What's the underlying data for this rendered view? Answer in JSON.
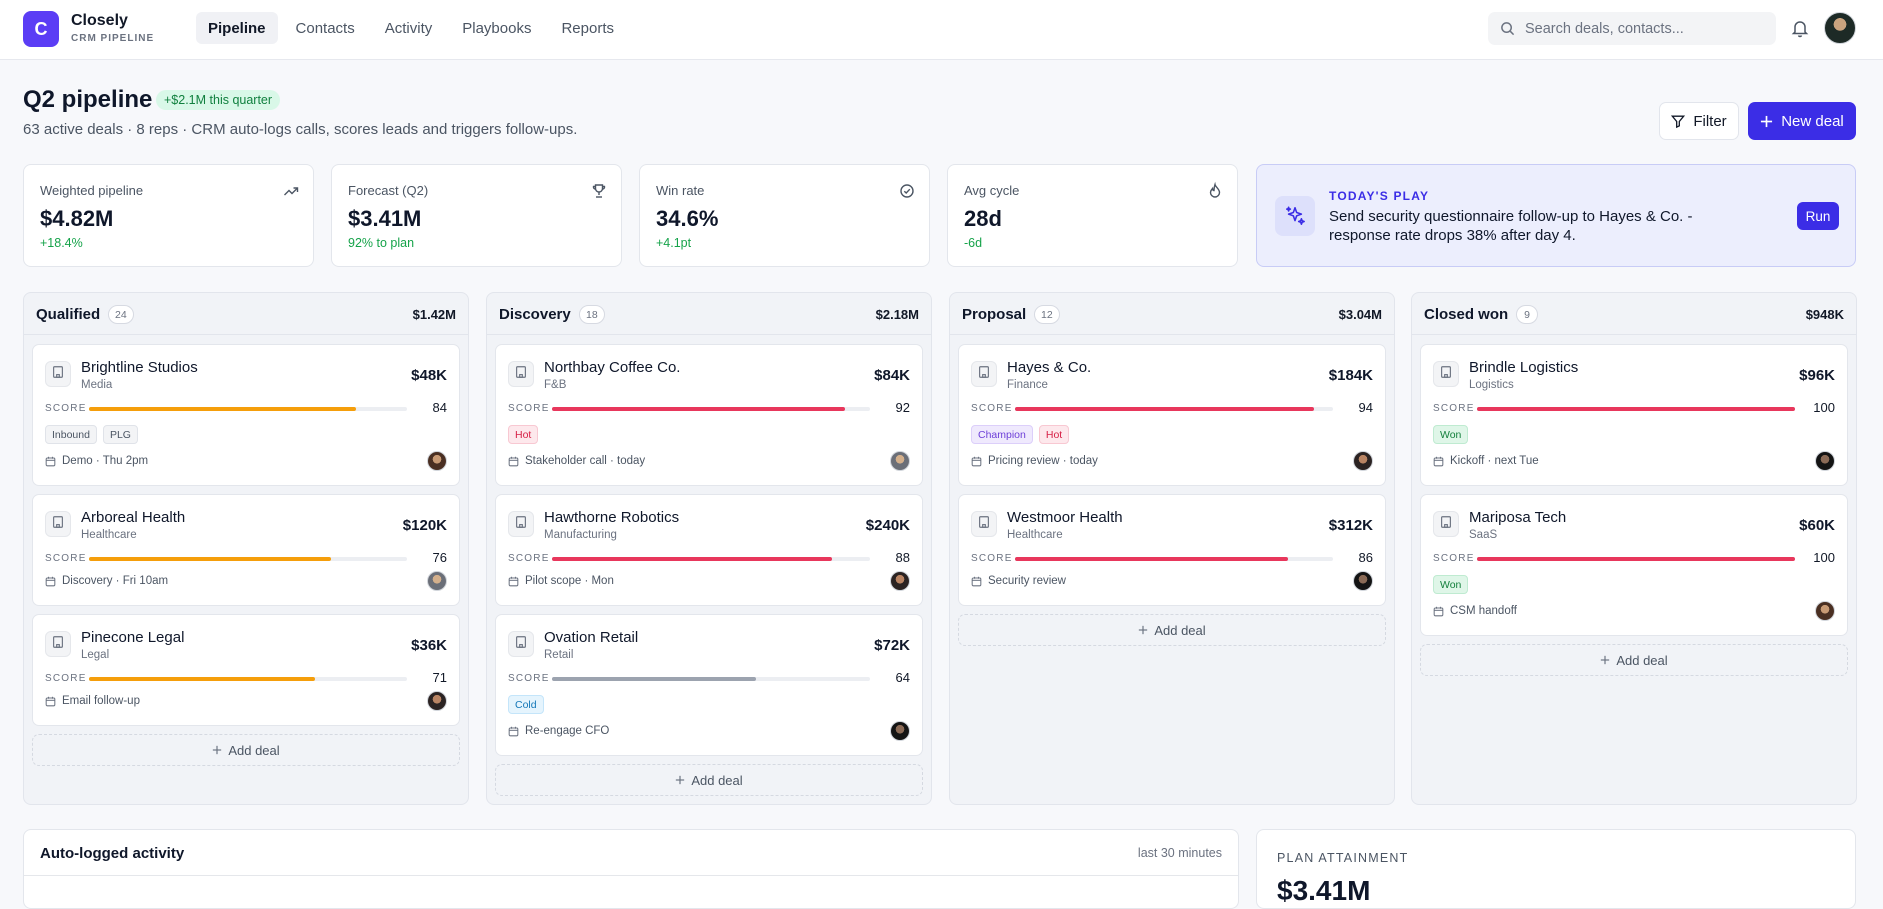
{
  "brand": {
    "logo_letter": "C",
    "name": "Closely",
    "subtitle": "CRM PIPELINE"
  },
  "nav": [
    {
      "label": "Pipeline",
      "active": true
    },
    {
      "label": "Contacts",
      "active": false
    },
    {
      "label": "Activity",
      "active": false
    },
    {
      "label": "Playbooks",
      "active": false
    },
    {
      "label": "Reports",
      "active": false
    }
  ],
  "search": {
    "placeholder": "Search deals, contacts..."
  },
  "header": {
    "title": "Q2 pipeline",
    "badge": "+$2.1M this quarter",
    "subtitle": "63 active deals · 8 reps · CRM auto-logs calls, scores leads and triggers follow-ups.",
    "filter_label": "Filter",
    "new_deal_label": "New deal"
  },
  "stats": [
    {
      "label": "Weighted pipeline",
      "value": "$4.82M",
      "delta": "+18.4%",
      "icon": "trending-up-icon",
      "delta_color": "#16a34a"
    },
    {
      "label": "Forecast (Q2)",
      "value": "$3.41M",
      "delta": "92% to plan",
      "icon": "trophy-icon",
      "delta_color": "#16a34a"
    },
    {
      "label": "Win rate",
      "value": "34.6%",
      "delta": "+4.1pt",
      "icon": "check-circle-icon",
      "delta_color": "#16a34a"
    },
    {
      "label": "Avg cycle",
      "value": "28d",
      "delta": "-6d",
      "icon": "flame-icon",
      "delta_color": "#16a34a"
    }
  ],
  "todays_play": {
    "kicker": "TODAY'S PLAY",
    "text": "Send security questionnaire follow-up to Hayes & Co. - response rate drops 38% after day 4.",
    "run_label": "Run"
  },
  "columns": [
    {
      "name": "Qualified",
      "count": "24",
      "total": "$1.42M",
      "add_label": "Add deal",
      "deals": [
        {
          "name": "Brightline Studios",
          "industry": "Media",
          "amount": "$48K",
          "score": 84,
          "score_color": "#f59e0b",
          "tags": [
            {
              "label": "Inbound",
              "kind": "gray"
            },
            {
              "label": "PLG",
              "kind": "gray"
            }
          ],
          "meta": "Demo · Thu 2pm"
        },
        {
          "name": "Arboreal Health",
          "industry": "Healthcare",
          "amount": "$120K",
          "score": 76,
          "score_color": "#f59e0b",
          "tags": [],
          "meta": "Discovery · Fri 10am"
        },
        {
          "name": "Pinecone Legal",
          "industry": "Legal",
          "amount": "$36K",
          "score": 71,
          "score_color": "#f59e0b",
          "tags": [],
          "meta": "Email follow-up"
        }
      ]
    },
    {
      "name": "Discovery",
      "count": "18",
      "total": "$2.18M",
      "add_label": "Add deal",
      "deals": [
        {
          "name": "Northbay Coffee Co.",
          "industry": "F&B",
          "amount": "$84K",
          "score": 92,
          "score_color": "#e8375c",
          "tags": [
            {
              "label": "Hot",
              "kind": "hot"
            }
          ],
          "meta": "Stakeholder call · today"
        },
        {
          "name": "Hawthorne Robotics",
          "industry": "Manufacturing",
          "amount": "$240K",
          "score": 88,
          "score_color": "#e8375c",
          "tags": [],
          "meta": "Pilot scope · Mon"
        },
        {
          "name": "Ovation Retail",
          "industry": "Retail",
          "amount": "$72K",
          "score": 64,
          "score_color": "#9ca3af",
          "tags": [
            {
              "label": "Cold",
              "kind": "cold"
            }
          ],
          "meta": "Re-engage CFO"
        }
      ]
    },
    {
      "name": "Proposal",
      "count": "12",
      "total": "$3.04M",
      "add_label": "Add deal",
      "deals": [
        {
          "name": "Hayes & Co.",
          "industry": "Finance",
          "amount": "$184K",
          "score": 94,
          "score_color": "#e8375c",
          "tags": [
            {
              "label": "Champion",
              "kind": "champion"
            },
            {
              "label": "Hot",
              "kind": "hot"
            }
          ],
          "meta": "Pricing review · today"
        },
        {
          "name": "Westmoor Health",
          "industry": "Healthcare",
          "amount": "$312K",
          "score": 86,
          "score_color": "#e8375c",
          "tags": [],
          "meta": "Security review"
        }
      ]
    },
    {
      "name": "Closed won",
      "count": "9",
      "total": "$948K",
      "add_label": "Add deal",
      "deals": [
        {
          "name": "Brindle Logistics",
          "industry": "Logistics",
          "amount": "$96K",
          "score": 100,
          "score_color": "#e8375c",
          "tags": [
            {
              "label": "Won",
              "kind": "won"
            }
          ],
          "meta": "Kickoff · next Tue"
        },
        {
          "name": "Mariposa Tech",
          "industry": "SaaS",
          "amount": "$60K",
          "score": 100,
          "score_color": "#e8375c",
          "tags": [
            {
              "label": "Won",
              "kind": "won"
            }
          ],
          "meta": "CSM handoff"
        }
      ]
    }
  ],
  "activity": {
    "title": "Auto-logged activity",
    "range": "last 30 minutes"
  },
  "plan": {
    "kicker": "PLAN ATTAINMENT",
    "value": "$3.41M"
  }
}
